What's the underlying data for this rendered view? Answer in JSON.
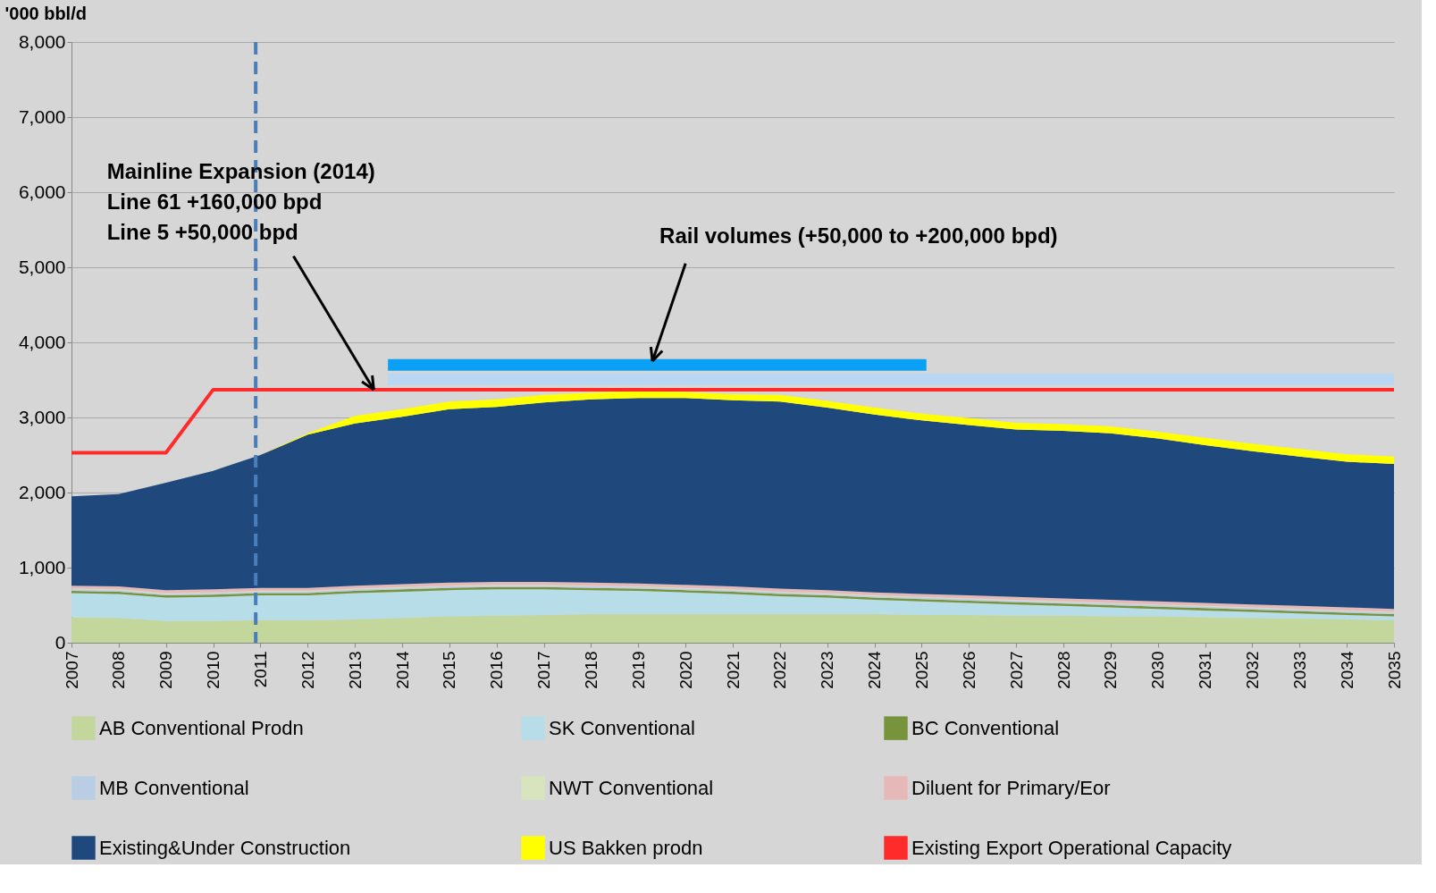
{
  "chart_data": {
    "type": "area",
    "stacked": true,
    "ylabel": "'000 bbl/d",
    "xlim": [
      2007,
      2035
    ],
    "xticks": [
      2007,
      2008,
      2009,
      2010,
      2011,
      2012,
      2013,
      2014,
      2015,
      2016,
      2017,
      2018,
      2019,
      2020,
      2021,
      2022,
      2023,
      2024,
      2025,
      2026,
      2027,
      2028,
      2029,
      2030,
      2031,
      2032,
      2033,
      2034,
      2035
    ],
    "ylim": [
      0,
      8000
    ],
    "yticks": [
      {
        "value": 0,
        "label": "0"
      },
      {
        "value": 1000,
        "label": "1,000"
      },
      {
        "value": 2000,
        "label": "2,000"
      },
      {
        "value": 3000,
        "label": "3,000"
      },
      {
        "value": 4000,
        "label": "4,000"
      },
      {
        "value": 5000,
        "label": "5,000"
      },
      {
        "value": 6000,
        "label": "6,000"
      },
      {
        "value": 7000,
        "label": "7,000"
      },
      {
        "value": 8000,
        "label": "8,000"
      }
    ],
    "grid": "y",
    "legend": "bottom",
    "x": [
      2007,
      2008,
      2009,
      2010,
      2011,
      2012,
      2013,
      2014,
      2015,
      2016,
      2017,
      2018,
      2019,
      2020,
      2021,
      2022,
      2023,
      2024,
      2025,
      2026,
      2027,
      2028,
      2029,
      2030,
      2031,
      2032,
      2033,
      2034,
      2035
    ],
    "series": [
      {
        "name": "AB Conventional Prodn",
        "color": "#c3d69b",
        "values": [
          340,
          330,
          290,
          290,
          300,
          300,
          310,
          330,
          350,
          360,
          370,
          380,
          380,
          380,
          380,
          380,
          380,
          380,
          370,
          370,
          360,
          360,
          350,
          350,
          340,
          330,
          320,
          310,
          300
        ]
      },
      {
        "name": "SK Conventional",
        "color": "#b7dde8",
        "values": [
          320,
          320,
          310,
          320,
          330,
          330,
          350,
          350,
          350,
          350,
          340,
          320,
          310,
          290,
          270,
          240,
          220,
          190,
          180,
          160,
          150,
          130,
          120,
          100,
          90,
          80,
          70,
          60,
          50
        ]
      },
      {
        "name": "BC Conventional",
        "color": "#77933c",
        "values": [
          30,
          30,
          30,
          30,
          30,
          30,
          30,
          30,
          30,
          30,
          30,
          30,
          30,
          30,
          30,
          30,
          30,
          30,
          30,
          30,
          30,
          30,
          30,
          30,
          30,
          30,
          30,
          30,
          30
        ]
      },
      {
        "name": "MB Conventional",
        "color": "#b9cde5",
        "values": [
          20,
          20,
          20,
          20,
          20,
          20,
          20,
          20,
          20,
          20,
          20,
          20,
          20,
          20,
          20,
          20,
          20,
          20,
          20,
          20,
          20,
          20,
          20,
          20,
          20,
          20,
          20,
          20,
          20
        ]
      },
      {
        "name": "NWT Conventional",
        "color": "#d7e4bd",
        "values": [
          10,
          10,
          10,
          10,
          10,
          10,
          10,
          10,
          10,
          10,
          10,
          10,
          10,
          10,
          10,
          10,
          10,
          10,
          10,
          10,
          10,
          10,
          10,
          10,
          10,
          10,
          10,
          10,
          10
        ]
      },
      {
        "name": "Diluent for Primary/Eor",
        "color": "#e6b9b8",
        "values": [
          40,
          40,
          40,
          40,
          40,
          40,
          40,
          40,
          40,
          40,
          40,
          40,
          40,
          40,
          40,
          40,
          40,
          40,
          40,
          40,
          40,
          40,
          40,
          40,
          40,
          40,
          40,
          40,
          40
        ]
      },
      {
        "name": "Existing&Under Construction",
        "color": "#1f497d",
        "values": [
          1190,
          1230,
          1430,
          1580,
          1770,
          2040,
          2160,
          2230,
          2310,
          2330,
          2390,
          2440,
          2470,
          2490,
          2480,
          2490,
          2430,
          2370,
          2310,
          2270,
          2230,
          2230,
          2220,
          2170,
          2100,
          2040,
          1990,
          1940,
          1930
        ]
      },
      {
        "name": "US Bakken prodn",
        "color": "#ffff00",
        "values": [
          0,
          0,
          0,
          0,
          0,
          20,
          100,
          100,
          100,
          100,
          100,
          90,
          90,
          80,
          80,
          90,
          90,
          90,
          90,
          90,
          90,
          90,
          90,
          90,
          100,
          100,
          100,
          100,
          100
        ]
      },
      {
        "name": "Existing Export Operational Capacity",
        "color": "#ff2a2a",
        "type": "line",
        "values": [
          2530,
          2530,
          2530,
          3370,
          3370,
          3370,
          3370,
          3370,
          3370,
          3370,
          3370,
          3370,
          3370,
          3370,
          3370,
          3370,
          3370,
          3370,
          3370,
          3370,
          3370,
          3370,
          3370,
          3370,
          3370,
          3370,
          3370,
          3370,
          3370
        ]
      },
      {
        "type": "line",
        "color": "#b9d7f2",
        "x": [
          2013.7,
          2035
        ],
        "values": [
          3510,
          3510
        ]
      },
      {
        "type": "line",
        "color": "#0aa0f5",
        "x": [
          2013.7,
          2025.1
        ],
        "values": [
          3700,
          3700
        ]
      }
    ],
    "ref_lines": [
      {
        "axis": "x",
        "value": 2010.9,
        "color": "#4a7ebb",
        "line_style": "dashed"
      }
    ],
    "annotations": [
      {
        "text": "Mainline Expansion (2014)\nLine 61 +160,000 bpd\nLine 5    +50,000 bpd",
        "x": 2013.4,
        "y": 3370
      },
      {
        "text": "Rail volumes (+50,000 to +200,000 bpd)",
        "x": 2019.3,
        "y": 3750
      }
    ]
  }
}
